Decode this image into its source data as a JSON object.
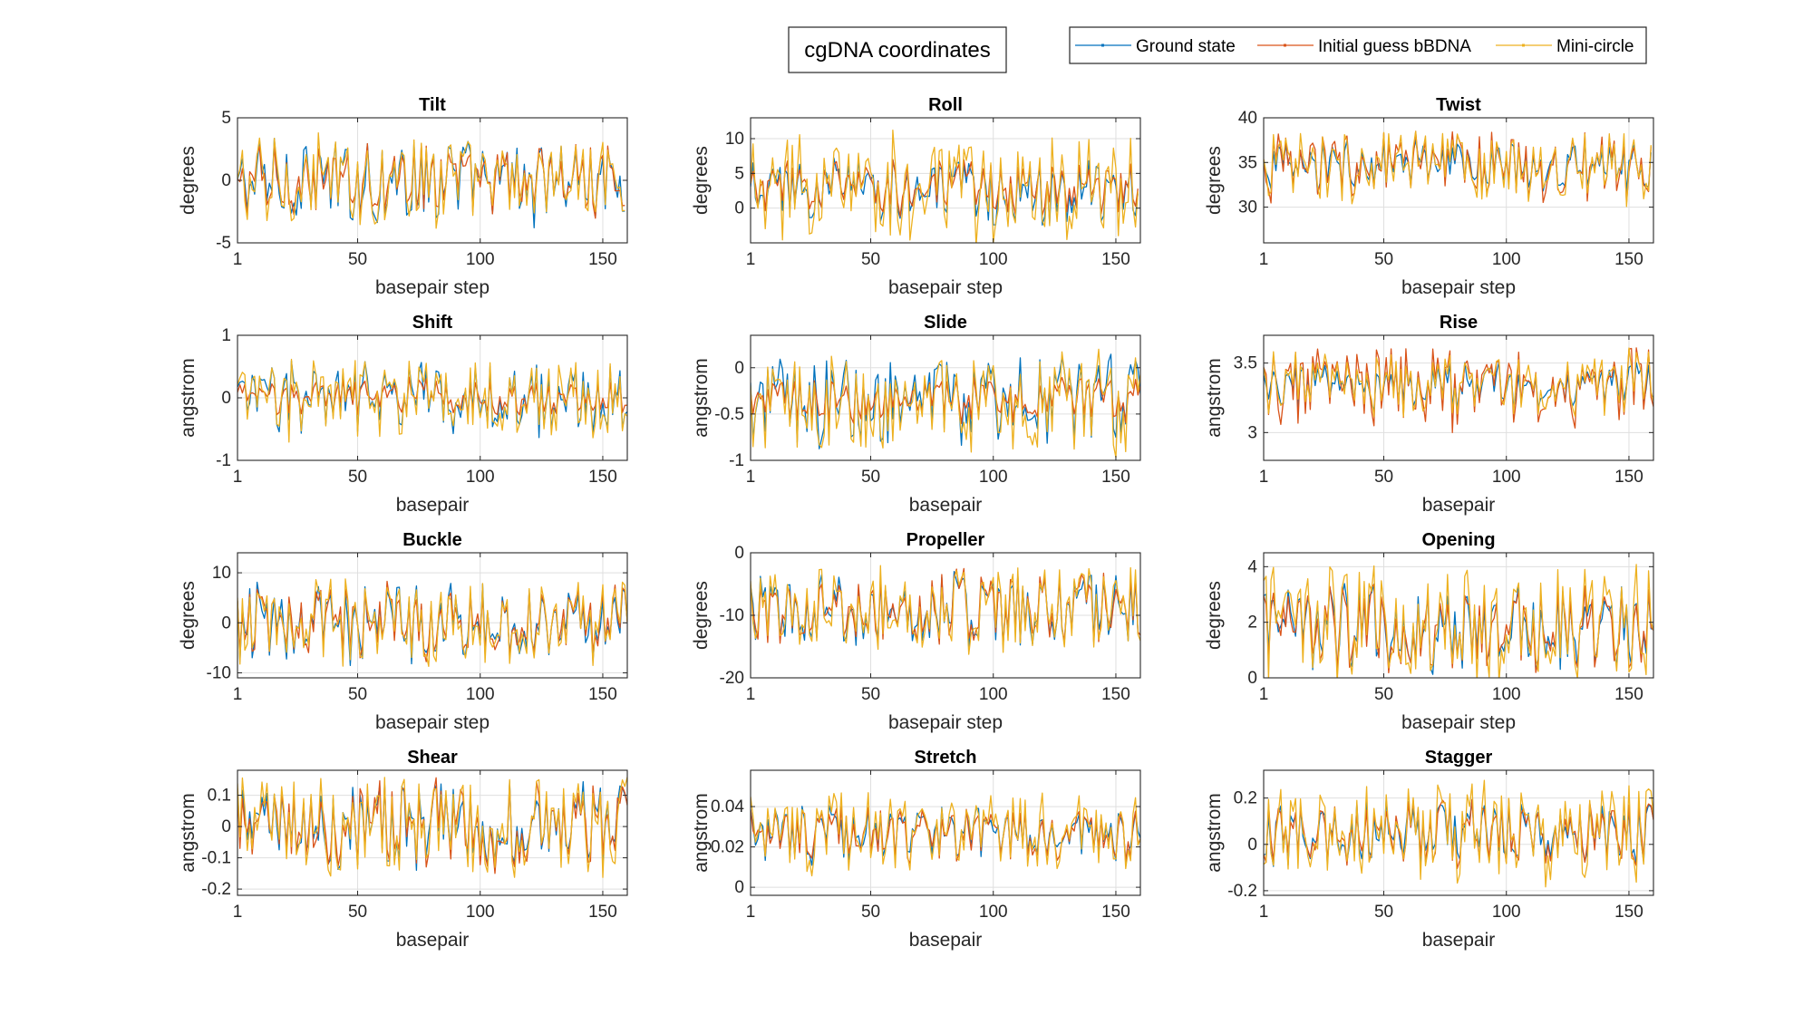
{
  "figure": {
    "title": "cgDNA coordinates",
    "legend": {
      "placement": "top-right",
      "entries": [
        {
          "name": "Ground state",
          "color": "#0072BD"
        },
        {
          "name": "Initial guess bBDNA",
          "color": "#D95319"
        },
        {
          "name": "Mini-circle",
          "color": "#EDB120"
        }
      ]
    }
  },
  "chart_data": [
    {
      "type": "line",
      "title": "Tilt",
      "xlabel": "basepair step",
      "ylabel": "degrees",
      "xlim": [
        1,
        160
      ],
      "ylim": [
        -5,
        5
      ],
      "xticks": [
        1,
        50,
        100,
        150
      ],
      "yticks": [
        -5,
        0,
        5
      ],
      "grid": true,
      "series": [
        {
          "name": "Ground state",
          "n": 159,
          "mean": 0,
          "amplitude": 3.5
        },
        {
          "name": "Initial guess bBDNA",
          "n": 159,
          "mean": 0,
          "amplitude": 3
        },
        {
          "name": "Mini-circle",
          "n": 159,
          "mean": 0,
          "amplitude": 3.8
        }
      ]
    },
    {
      "type": "line",
      "title": "Roll",
      "xlabel": "basepair step",
      "ylabel": "degrees",
      "xlim": [
        1,
        160
      ],
      "ylim": [
        -5,
        13
      ],
      "xticks": [
        1,
        50,
        100,
        150
      ],
      "yticks": [
        0,
        5,
        10
      ],
      "grid": true,
      "series": [
        {
          "name": "Ground state",
          "n": 159,
          "mean": 2.5,
          "amplitude": 5
        },
        {
          "name": "Initial guess bBDNA",
          "n": 159,
          "mean": 3,
          "amplitude": 4
        },
        {
          "name": "Mini-circle",
          "n": 159,
          "mean": 2.5,
          "amplitude": 8
        }
      ]
    },
    {
      "type": "line",
      "title": "Twist",
      "xlabel": "basepair step",
      "ylabel": "degrees",
      "xlim": [
        1,
        160
      ],
      "ylim": [
        26,
        40
      ],
      "xticks": [
        1,
        50,
        100,
        150
      ],
      "yticks": [
        30,
        35,
        40
      ],
      "grid": true,
      "series": [
        {
          "name": "Ground state",
          "n": 159,
          "mean": 34.5,
          "amplitude": 3
        },
        {
          "name": "Initial guess bBDNA",
          "n": 159,
          "mean": 34.5,
          "amplitude": 4
        },
        {
          "name": "Mini-circle",
          "n": 159,
          "mean": 34.5,
          "amplitude": 4
        }
      ]
    },
    {
      "type": "line",
      "title": "Shift",
      "xlabel": "basepair",
      "ylabel": "angstrom",
      "xlim": [
        1,
        160
      ],
      "ylim": [
        -1,
        1
      ],
      "xticks": [
        1,
        50,
        100,
        150
      ],
      "yticks": [
        -1,
        0,
        1
      ],
      "grid": true,
      "series": [
        {
          "name": "Ground state",
          "n": 160,
          "mean": 0,
          "amplitude": 0.6
        },
        {
          "name": "Initial guess bBDNA",
          "n": 160,
          "mean": 0,
          "amplitude": 0.3
        },
        {
          "name": "Mini-circle",
          "n": 160,
          "mean": 0,
          "amplitude": 0.7
        }
      ]
    },
    {
      "type": "line",
      "title": "Slide",
      "xlabel": "basepair",
      "ylabel": "angstrom",
      "xlim": [
        1,
        160
      ],
      "ylim": [
        -1,
        0.35
      ],
      "xticks": [
        1,
        50,
        100,
        150
      ],
      "yticks": [
        -1,
        -0.5,
        0
      ],
      "grid": true,
      "series": [
        {
          "name": "Ground state",
          "n": 160,
          "mean": -0.35,
          "amplitude": 0.5
        },
        {
          "name": "Initial guess bBDNA",
          "n": 160,
          "mean": -0.35,
          "amplitude": 0.25
        },
        {
          "name": "Mini-circle",
          "n": 160,
          "mean": -0.4,
          "amplitude": 0.55
        }
      ]
    },
    {
      "type": "line",
      "title": "Rise",
      "xlabel": "basepair",
      "ylabel": "angstrom",
      "xlim": [
        1,
        160
      ],
      "ylim": [
        2.8,
        3.7
      ],
      "xticks": [
        1,
        50,
        100,
        150
      ],
      "yticks": [
        3,
        3.5
      ],
      "grid": true,
      "series": [
        {
          "name": "Ground state",
          "n": 160,
          "mean": 3.33,
          "amplitude": 0.18
        },
        {
          "name": "Initial guess bBDNA",
          "n": 160,
          "mean": 3.33,
          "amplitude": 0.3
        },
        {
          "name": "Mini-circle",
          "n": 160,
          "mean": 3.35,
          "amplitude": 0.25
        }
      ]
    },
    {
      "type": "line",
      "title": "Buckle",
      "xlabel": "basepair step",
      "ylabel": "degrees",
      "xlim": [
        1,
        160
      ],
      "ylim": [
        -11,
        14
      ],
      "xticks": [
        1,
        50,
        100,
        150
      ],
      "yticks": [
        -10,
        0,
        10
      ],
      "grid": true,
      "series": [
        {
          "name": "Ground state",
          "n": 160,
          "mean": 0,
          "amplitude": 8
        },
        {
          "name": "Initial guess bBDNA",
          "n": 160,
          "mean": 0,
          "amplitude": 8
        },
        {
          "name": "Mini-circle",
          "n": 160,
          "mean": 0,
          "amplitude": 9
        }
      ]
    },
    {
      "type": "line",
      "title": "Propeller",
      "xlabel": "basepair step",
      "ylabel": "degrees",
      "xlim": [
        1,
        160
      ],
      "ylim": [
        -20,
        0
      ],
      "xticks": [
        1,
        50,
        100,
        150
      ],
      "yticks": [
        -20,
        -10,
        0
      ],
      "grid": true,
      "series": [
        {
          "name": "Ground state",
          "n": 160,
          "mean": -9,
          "amplitude": 6
        },
        {
          "name": "Initial guess bBDNA",
          "n": 160,
          "mean": -9,
          "amplitude": 6
        },
        {
          "name": "Mini-circle",
          "n": 160,
          "mean": -9,
          "amplitude": 7
        }
      ]
    },
    {
      "type": "line",
      "title": "Opening",
      "xlabel": "basepair step",
      "ylabel": "degrees",
      "xlim": [
        1,
        160
      ],
      "ylim": [
        0,
        4.5
      ],
      "xticks": [
        1,
        50,
        100,
        150
      ],
      "yticks": [
        0,
        2,
        4
      ],
      "grid": true,
      "series": [
        {
          "name": "Ground state",
          "n": 160,
          "mean": 1.8,
          "amplitude": 1.6
        },
        {
          "name": "Initial guess bBDNA",
          "n": 160,
          "mean": 1.8,
          "amplitude": 1.6
        },
        {
          "name": "Mini-circle",
          "n": 160,
          "mean": 1.9,
          "amplitude": 2.2
        }
      ]
    },
    {
      "type": "line",
      "title": "Shear",
      "xlabel": "basepair",
      "ylabel": "angstrom",
      "xlim": [
        1,
        160
      ],
      "ylim": [
        -0.22,
        0.18
      ],
      "xticks": [
        1,
        50,
        100,
        150
      ],
      "yticks": [
        -0.2,
        -0.1,
        0,
        0.1
      ],
      "grid": true,
      "series": [
        {
          "name": "Ground state",
          "n": 160,
          "mean": 0,
          "amplitude": 0.15
        },
        {
          "name": "Initial guess bBDNA",
          "n": 160,
          "mean": 0,
          "amplitude": 0.15
        },
        {
          "name": "Mini-circle",
          "n": 160,
          "mean": 0,
          "amplitude": 0.17
        }
      ]
    },
    {
      "type": "line",
      "title": "Stretch",
      "xlabel": "basepair",
      "ylabel": "angstrom",
      "xlim": [
        1,
        160
      ],
      "ylim": [
        -0.004,
        0.058
      ],
      "xticks": [
        1,
        50,
        100,
        150
      ],
      "yticks": [
        0,
        0.02,
        0.04
      ],
      "grid": true,
      "series": [
        {
          "name": "Ground state",
          "n": 160,
          "mean": 0.026,
          "amplitude": 0.014
        },
        {
          "name": "Initial guess bBDNA",
          "n": 160,
          "mean": 0.026,
          "amplitude": 0.014
        },
        {
          "name": "Mini-circle",
          "n": 160,
          "mean": 0.027,
          "amplitude": 0.02
        }
      ]
    },
    {
      "type": "line",
      "title": "Stagger",
      "xlabel": "basepair",
      "ylabel": "angstrom",
      "xlim": [
        1,
        160
      ],
      "ylim": [
        -0.22,
        0.32
      ],
      "xticks": [
        1,
        50,
        100,
        150
      ],
      "yticks": [
        -0.2,
        0,
        0.2
      ],
      "grid": true,
      "series": [
        {
          "name": "Ground state",
          "n": 160,
          "mean": 0.05,
          "amplitude": 0.15
        },
        {
          "name": "Initial guess bBDNA",
          "n": 160,
          "mean": 0.05,
          "amplitude": 0.15
        },
        {
          "name": "Mini-circle",
          "n": 160,
          "mean": 0.05,
          "amplitude": 0.22
        }
      ]
    }
  ]
}
